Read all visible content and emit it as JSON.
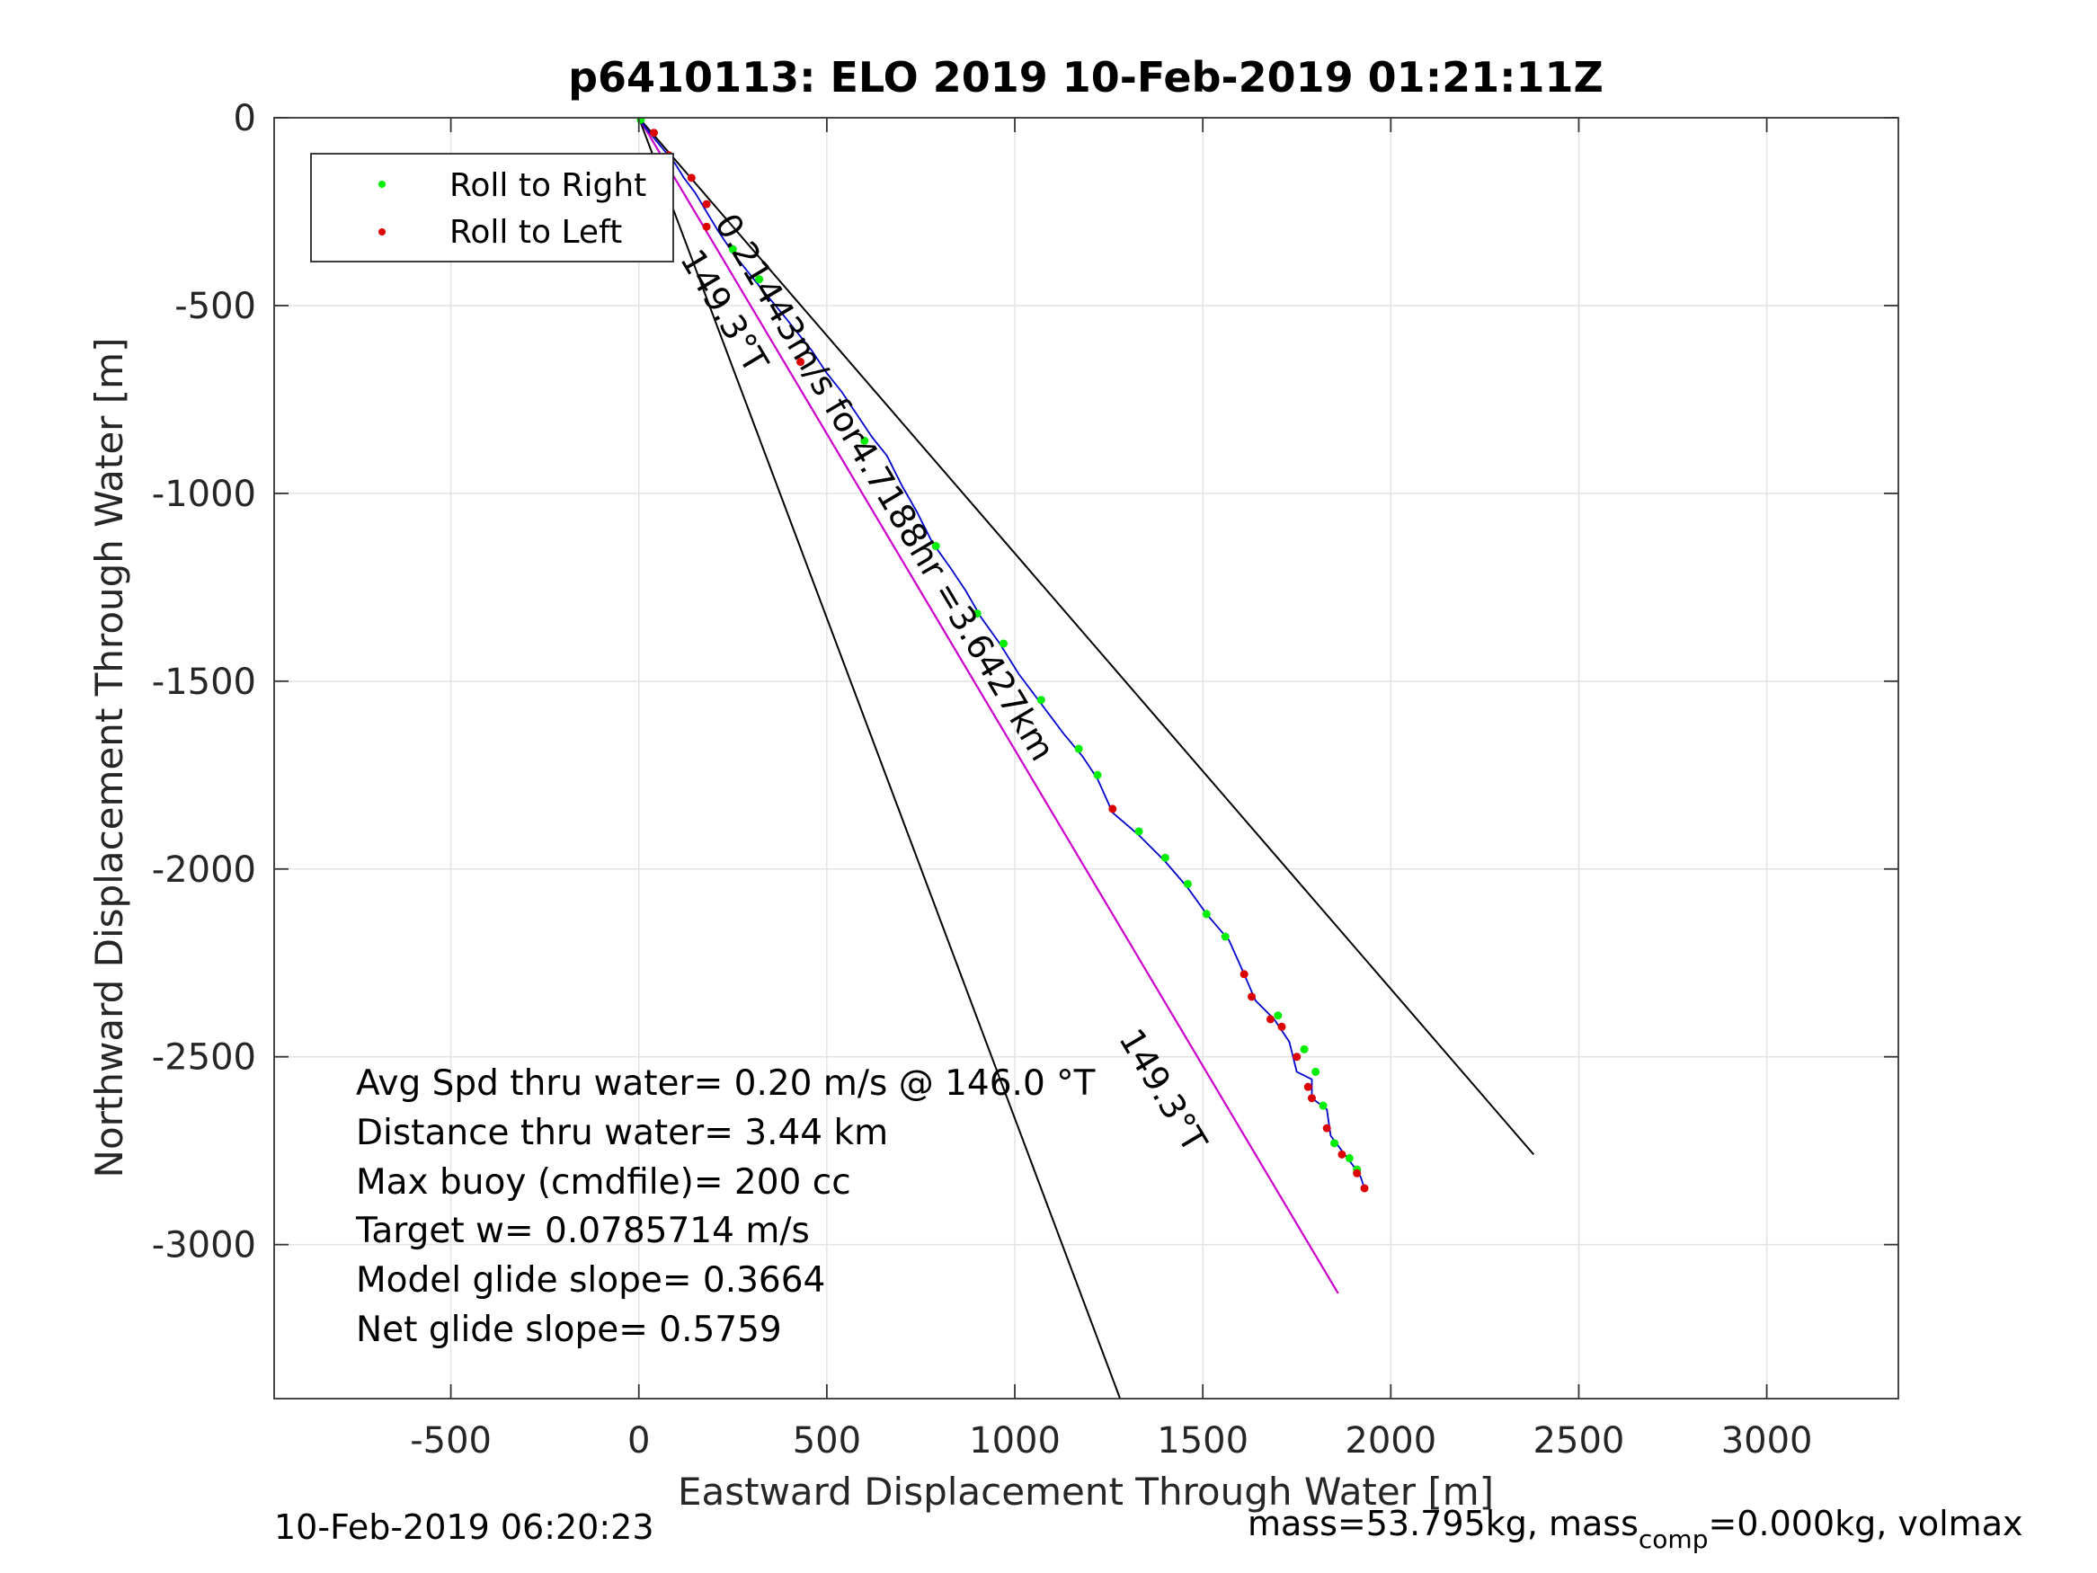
{
  "chart_data": {
    "type": "scatter",
    "title": "p6410113: ELO 2019 10-Feb-2019 01:21:11Z",
    "xlabel": "Eastward Displacement Through Water [m]",
    "ylabel": "Northward Displacement Through Water [m]",
    "xlim": [
      -970,
      3350
    ],
    "ylim": [
      -3410,
      0
    ],
    "xticks": [
      -500,
      0,
      500,
      1000,
      1500,
      2000,
      2500,
      3000
    ],
    "yticks": [
      0,
      -500,
      -1000,
      -1500,
      -2000,
      -2500,
      -3000
    ],
    "grid": true,
    "legend_position": "top-left",
    "legend": [
      {
        "label": "Roll to Right",
        "color": "#00ee00"
      },
      {
        "label": "Roll to Left",
        "color": "#dd0000"
      }
    ],
    "colors": {
      "track": "#0000cc",
      "roll_right": "#00ee00",
      "roll_left": "#dd0000",
      "current_line": "#cc00cc",
      "bounds": "#000000",
      "grid": "#e3e3e3"
    },
    "track": [
      [
        0,
        0
      ],
      [
        20,
        -30
      ],
      [
        45,
        -60
      ],
      [
        70,
        -90
      ],
      [
        95,
        -120
      ],
      [
        120,
        -160
      ],
      [
        150,
        -200
      ],
      [
        180,
        -250
      ],
      [
        210,
        -300
      ],
      [
        250,
        -360
      ],
      [
        290,
        -410
      ],
      [
        330,
        -460
      ],
      [
        380,
        -520
      ],
      [
        420,
        -570
      ],
      [
        460,
        -620
      ],
      [
        500,
        -680
      ],
      [
        540,
        -730
      ],
      [
        580,
        -790
      ],
      [
        620,
        -850
      ],
      [
        660,
        -900
      ],
      [
        700,
        -980
      ],
      [
        740,
        -1050
      ],
      [
        780,
        -1130
      ],
      [
        830,
        -1200
      ],
      [
        870,
        -1260
      ],
      [
        910,
        -1330
      ],
      [
        960,
        -1400
      ],
      [
        1010,
        -1480
      ],
      [
        1070,
        -1560
      ],
      [
        1130,
        -1640
      ],
      [
        1180,
        -1700
      ],
      [
        1220,
        -1760
      ],
      [
        1260,
        -1850
      ],
      [
        1330,
        -1910
      ],
      [
        1400,
        -1980
      ],
      [
        1460,
        -2050
      ],
      [
        1510,
        -2120
      ],
      [
        1570,
        -2190
      ],
      [
        1610,
        -2280
      ],
      [
        1640,
        -2350
      ],
      [
        1690,
        -2400
      ],
      [
        1730,
        -2460
      ],
      [
        1750,
        -2540
      ],
      [
        1790,
        -2560
      ],
      [
        1790,
        -2610
      ],
      [
        1830,
        -2640
      ],
      [
        1840,
        -2710
      ],
      [
        1870,
        -2750
      ],
      [
        1900,
        -2790
      ],
      [
        1920,
        -2820
      ],
      [
        1930,
        -2850
      ]
    ],
    "roll_right_points": [
      [
        5,
        -5
      ],
      [
        250,
        -350
      ],
      [
        320,
        -430
      ],
      [
        600,
        -860
      ],
      [
        790,
        -1140
      ],
      [
        900,
        -1320
      ],
      [
        970,
        -1400
      ],
      [
        1070,
        -1550
      ],
      [
        1170,
        -1680
      ],
      [
        1220,
        -1750
      ],
      [
        1330,
        -1900
      ],
      [
        1400,
        -1970
      ],
      [
        1460,
        -2040
      ],
      [
        1510,
        -2120
      ],
      [
        1560,
        -2180
      ],
      [
        1700,
        -2390
      ],
      [
        1770,
        -2480
      ],
      [
        1800,
        -2540
      ],
      [
        1820,
        -2630
      ],
      [
        1850,
        -2730
      ],
      [
        1890,
        -2770
      ],
      [
        1910,
        -2800
      ]
    ],
    "roll_left_points": [
      [
        40,
        -40
      ],
      [
        80,
        -100
      ],
      [
        140,
        -160
      ],
      [
        180,
        -230
      ],
      [
        180,
        -290
      ],
      [
        430,
        -650
      ],
      [
        1260,
        -1840
      ],
      [
        1610,
        -2280
      ],
      [
        1630,
        -2340
      ],
      [
        1680,
        -2400
      ],
      [
        1710,
        -2420
      ],
      [
        1750,
        -2500
      ],
      [
        1780,
        -2580
      ],
      [
        1790,
        -2610
      ],
      [
        1830,
        -2690
      ],
      [
        1870,
        -2760
      ],
      [
        1910,
        -2810
      ],
      [
        1930,
        -2850
      ]
    ],
    "mean_current_line": [
      [
        0,
        0
      ],
      [
        1860,
        -3130
      ]
    ],
    "bound_lines": [
      [
        [
          0,
          0
        ],
        [
          1280,
          -3410
        ]
      ],
      [
        [
          0,
          0
        ],
        [
          2380,
          -2760
        ]
      ]
    ],
    "rotated_labels": [
      {
        "text": "0.21443m/s for4.7188hr =3.6427km",
        "x": 200,
        "y": -280
      },
      {
        "text": "149.3°T",
        "x": 108,
        "y": -375
      },
      {
        "text": "149.3°T",
        "x": 1275,
        "y": -2450
      }
    ],
    "annotations": [
      "Avg Spd thru water=  0.20 m/s @ 146.0 °T",
      "Distance thru water=  3.44 km",
      "Max buoy (cmdfile)= 200 cc",
      "Target w= 0.0785714 m/s",
      "Model glide slope= 0.3664",
      "Net glide slope= 0.5759"
    ]
  },
  "footer": {
    "timestamp": "10-Feb-2019 06:20:23",
    "mass_prefix": "mass=53.795kg, mass",
    "mass_sub": "comp",
    "mass_suffix": "=0.000kg, volmax"
  }
}
